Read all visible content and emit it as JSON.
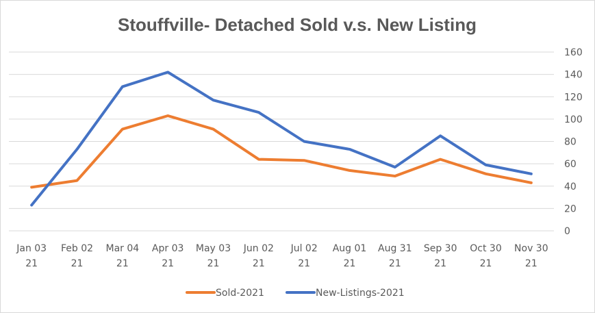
{
  "chart_data": {
    "type": "line",
    "title": "Stouffville- Detached Sold v.s. New Listing",
    "xlabel": "",
    "ylabel": "",
    "categories": [
      [
        "Jan 03",
        "21"
      ],
      [
        "Feb 02",
        "21"
      ],
      [
        "Mar 04",
        "21"
      ],
      [
        "Apr 03",
        "21"
      ],
      [
        "May 03",
        "21"
      ],
      [
        "Jun 02",
        "21"
      ],
      [
        "Jul 02",
        "21"
      ],
      [
        "Aug 01",
        "21"
      ],
      [
        "Aug 31",
        "21"
      ],
      [
        "Sep 30",
        "21"
      ],
      [
        "Oct 30",
        "21"
      ],
      [
        "Nov 30",
        "21"
      ]
    ],
    "y_axis": {
      "position": "right",
      "min": 0,
      "max": 160,
      "step": 20,
      "ticks": [
        "0",
        "20",
        "40",
        "60",
        "80",
        "100",
        "120",
        "140",
        "160"
      ]
    },
    "grid": true,
    "legend": {
      "placement": "bottom"
    },
    "series": [
      {
        "name": "Sold-2021",
        "color": "#ed7d31",
        "values": [
          39,
          45,
          91,
          103,
          91,
          64,
          63,
          54,
          49,
          64,
          51,
          43
        ]
      },
      {
        "name": "New-Listings-2021",
        "color": "#4472c4",
        "values": [
          23,
          73,
          129,
          142,
          117,
          106,
          80,
          73,
          57,
          85,
          59,
          51
        ]
      }
    ],
    "gridline_color": "#d9d9d9",
    "text_color": "#595959"
  }
}
